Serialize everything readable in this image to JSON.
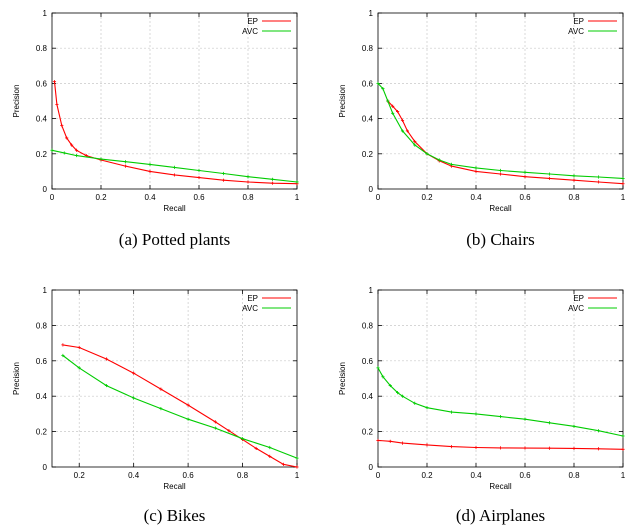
{
  "colors": {
    "ep": "#ff0000",
    "avc": "#00cc00",
    "grid": "#c8c8c8"
  },
  "chart_data": [
    {
      "type": "line",
      "caption": "(a)  Potted plants",
      "xlabel": "Recall",
      "ylabel": "Precision",
      "xlim": [
        0,
        1
      ],
      "ylim": [
        0,
        1
      ],
      "grid": true,
      "legend": "top-right",
      "xticks": [
        "0",
        "0.2",
        "0.4",
        "0.6",
        "0.8",
        "1"
      ],
      "yticks": [
        "0",
        "0.2",
        "0.4",
        "0.6",
        "0.8",
        "1"
      ],
      "series": [
        {
          "name": "EP",
          "x": [
            0.01,
            0.02,
            0.04,
            0.06,
            0.08,
            0.1,
            0.14,
            0.2,
            0.3,
            0.4,
            0.5,
            0.6,
            0.7,
            0.8,
            0.9,
            1.0
          ],
          "y": [
            0.61,
            0.48,
            0.36,
            0.29,
            0.25,
            0.22,
            0.19,
            0.165,
            0.13,
            0.1,
            0.08,
            0.065,
            0.05,
            0.04,
            0.033,
            0.03
          ]
        },
        {
          "name": "AVC",
          "x": [
            0.0,
            0.05,
            0.1,
            0.2,
            0.3,
            0.4,
            0.5,
            0.6,
            0.7,
            0.8,
            0.9,
            1.0
          ],
          "y": [
            0.22,
            0.205,
            0.19,
            0.17,
            0.155,
            0.14,
            0.123,
            0.105,
            0.088,
            0.07,
            0.055,
            0.04
          ]
        }
      ]
    },
    {
      "type": "line",
      "caption": "(b)  Chairs",
      "xlabel": "Recall",
      "ylabel": "Precision",
      "xlim": [
        0,
        1
      ],
      "ylim": [
        0,
        1
      ],
      "grid": true,
      "legend": "top-right",
      "xticks": [
        "0",
        "0.2",
        "0.4",
        "0.6",
        "0.8",
        "1"
      ],
      "yticks": [
        "0",
        "0.2",
        "0.4",
        "0.6",
        "0.8",
        "1"
      ],
      "series": [
        {
          "name": "EP",
          "x": [
            0.04,
            0.06,
            0.08,
            0.1,
            0.12,
            0.15,
            0.2,
            0.25,
            0.3,
            0.4,
            0.5,
            0.6,
            0.7,
            0.8,
            0.9,
            1.0
          ],
          "y": [
            0.5,
            0.47,
            0.44,
            0.39,
            0.33,
            0.27,
            0.2,
            0.16,
            0.13,
            0.1,
            0.085,
            0.07,
            0.06,
            0.05,
            0.04,
            0.03
          ]
        },
        {
          "name": "AVC",
          "x": [
            0.0,
            0.02,
            0.04,
            0.06,
            0.1,
            0.15,
            0.2,
            0.25,
            0.3,
            0.4,
            0.5,
            0.6,
            0.7,
            0.8,
            0.9,
            1.0
          ],
          "y": [
            0.6,
            0.57,
            0.5,
            0.43,
            0.33,
            0.25,
            0.2,
            0.165,
            0.14,
            0.12,
            0.105,
            0.095,
            0.085,
            0.075,
            0.068,
            0.06
          ]
        }
      ]
    },
    {
      "type": "line",
      "caption": "(c)  Bikes",
      "xlabel": "Recall",
      "ylabel": "Precision",
      "xlim": [
        0,
        1
      ],
      "ylim": [
        0,
        1
      ],
      "grid": true,
      "legend": "top-right",
      "xticks": [
        "0.2",
        "0.4",
        "0.6",
        "0.8",
        "1"
      ],
      "xtickvals": [
        0.2,
        0.4,
        0.6,
        0.8,
        1.0
      ],
      "xrange": [
        0.1,
        1.0
      ],
      "yticks": [
        "0",
        "0.2",
        "0.4",
        "0.6",
        "0.8",
        "1"
      ],
      "series": [
        {
          "name": "EP",
          "x": [
            0.14,
            0.2,
            0.3,
            0.4,
            0.5,
            0.6,
            0.7,
            0.75,
            0.8,
            0.85,
            0.9,
            0.95,
            1.0
          ],
          "y": [
            0.69,
            0.675,
            0.61,
            0.53,
            0.44,
            0.35,
            0.255,
            0.205,
            0.155,
            0.105,
            0.06,
            0.015,
            0.0
          ]
        },
        {
          "name": "AVC",
          "x": [
            0.14,
            0.2,
            0.3,
            0.4,
            0.5,
            0.6,
            0.7,
            0.8,
            0.9,
            1.0
          ],
          "y": [
            0.63,
            0.56,
            0.46,
            0.39,
            0.33,
            0.27,
            0.22,
            0.16,
            0.11,
            0.05
          ]
        }
      ]
    },
    {
      "type": "line",
      "caption": "(d)  Airplanes",
      "xlabel": "Recall",
      "ylabel": "Precision",
      "xlim": [
        0,
        1
      ],
      "ylim": [
        0,
        1
      ],
      "grid": true,
      "legend": "top-right",
      "xticks": [
        "0",
        "0.2",
        "0.4",
        "0.6",
        "0.8",
        "1"
      ],
      "yticks": [
        "0",
        "0.2",
        "0.4",
        "0.6",
        "0.8",
        "1"
      ],
      "series": [
        {
          "name": "EP",
          "x": [
            0.0,
            0.05,
            0.1,
            0.2,
            0.3,
            0.4,
            0.5,
            0.6,
            0.7,
            0.8,
            0.9,
            1.0
          ],
          "y": [
            0.15,
            0.145,
            0.135,
            0.125,
            0.115,
            0.11,
            0.108,
            0.107,
            0.106,
            0.105,
            0.103,
            0.1
          ]
        },
        {
          "name": "AVC",
          "x": [
            0.0,
            0.02,
            0.05,
            0.08,
            0.1,
            0.15,
            0.2,
            0.3,
            0.4,
            0.5,
            0.6,
            0.7,
            0.8,
            0.9,
            1.0
          ],
          "y": [
            0.56,
            0.51,
            0.46,
            0.42,
            0.4,
            0.36,
            0.335,
            0.31,
            0.3,
            0.285,
            0.27,
            0.25,
            0.23,
            0.205,
            0.175
          ]
        }
      ]
    }
  ]
}
